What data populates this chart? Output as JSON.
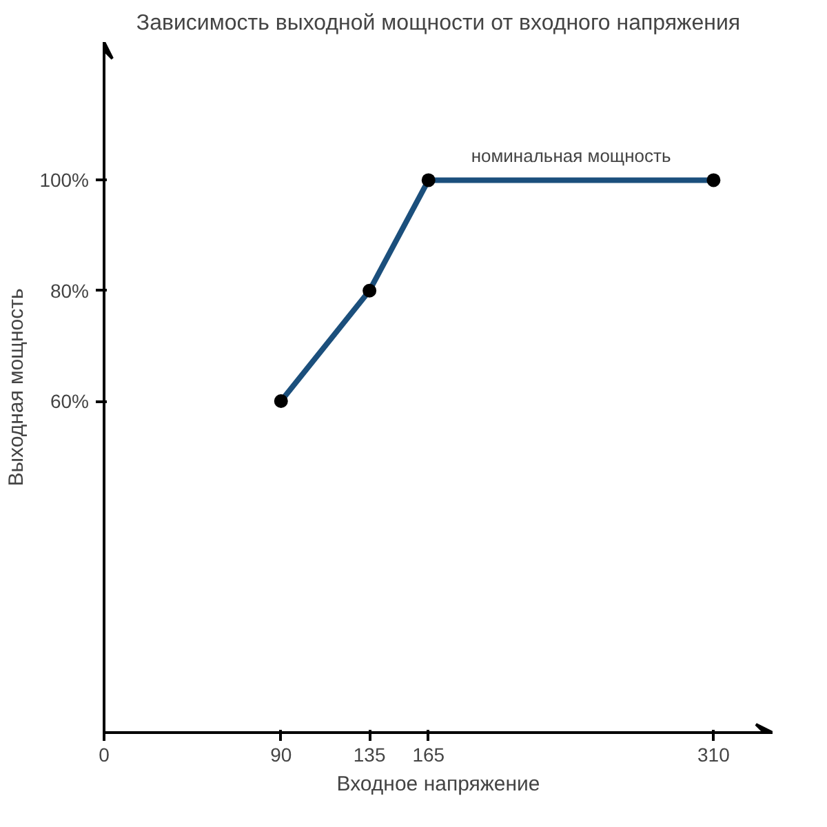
{
  "chart_data": {
    "type": "line",
    "title": "Зависимость выходной мощности от входного напряжения",
    "xlabel": "Входное напряжение",
    "ylabel": "Выходная мощность",
    "x": [
      90,
      135,
      165,
      310
    ],
    "series": [
      {
        "color": "#1b4f7c",
        "values": [
          60,
          80,
          100,
          100
        ]
      }
    ],
    "xlim": [
      0,
      340
    ],
    "xticks": [
      0,
      90,
      135,
      165,
      310
    ],
    "ylim": [
      0,
      125
    ],
    "yticks": [
      {
        "value": 60,
        "label": "60%"
      },
      {
        "value": 80,
        "label": "80%"
      },
      {
        "value": 100,
        "label": "100%"
      }
    ],
    "annotations": [
      {
        "text": "номинальная мощность",
        "x": 237.5,
        "y": 100
      }
    ],
    "marker": "circle",
    "grid": false
  }
}
